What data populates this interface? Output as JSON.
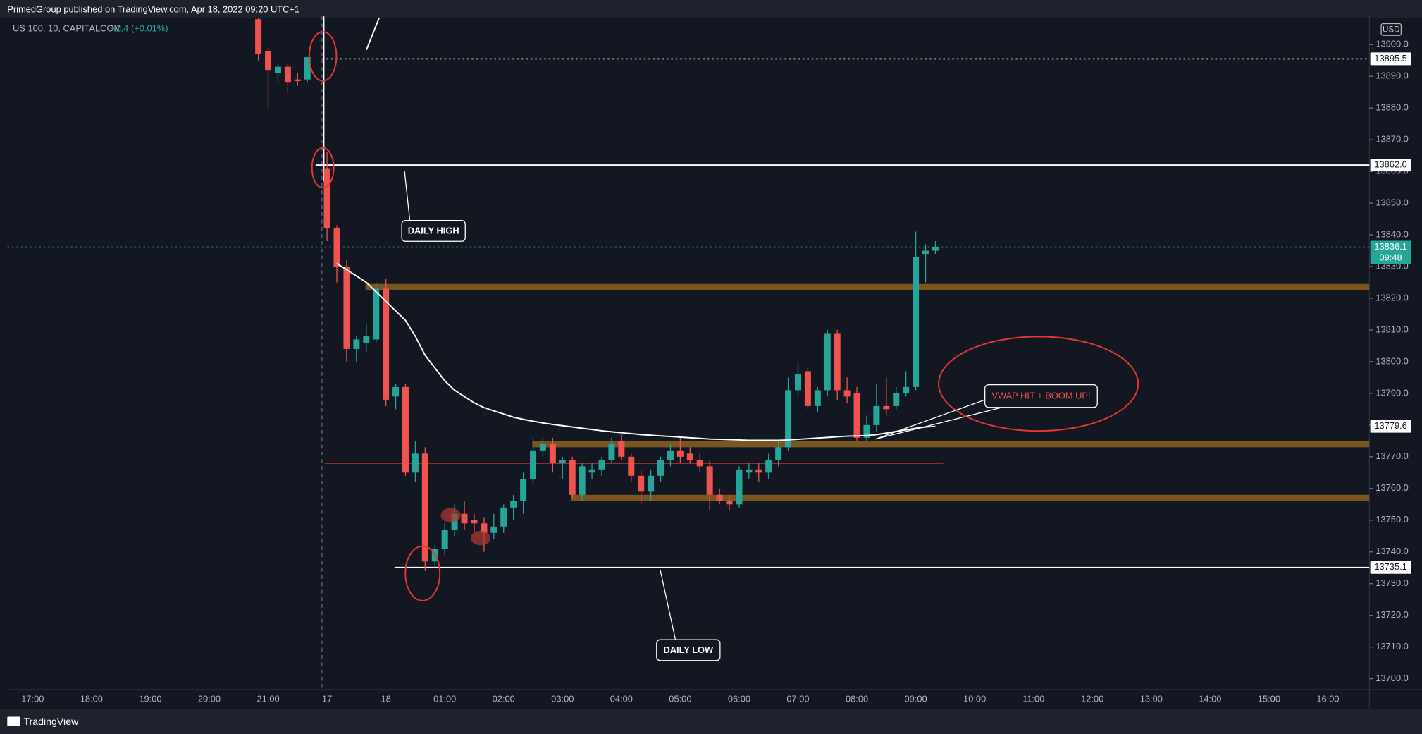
{
  "page": {
    "header": "PrimedGroup published on TradingView.com, Apr 18, 2022 09:20 UTC+1",
    "footer": "TradingView"
  },
  "chart_data": {
    "type": "candlestick",
    "change": "+1.4 (+0.01%)",
    "currency": "USD",
    "countdown": "09:48",
    "up_color": "#26a69a",
    "down_color": "#ef5350",
    "categories": [
      "17:00",
      null,
      null,
      null,
      null,
      null,
      "18:00",
      null,
      null,
      null,
      null,
      null,
      "19:00",
      null,
      null,
      null,
      null,
      null,
      "20:00",
      null,
      null,
      null,
      null,
      null,
      "21:00",
      null,
      null,
      null,
      null,
      null,
      "17",
      null,
      null,
      null,
      null,
      null,
      "18",
      null,
      null,
      null,
      null,
      null,
      "01:00",
      null,
      null,
      null,
      null,
      null,
      "02:00",
      null,
      null,
      null,
      null,
      null,
      "03:00",
      null,
      null,
      null,
      null,
      null,
      "04:00",
      null,
      null,
      null,
      null,
      null,
      "05:00",
      null,
      null,
      null,
      null,
      null,
      "06:00",
      null,
      null,
      null,
      null,
      null,
      "07:00",
      null,
      null,
      null,
      null,
      null,
      "08:00",
      null,
      null,
      null,
      null,
      null,
      "09:00",
      null,
      null,
      null,
      null,
      null,
      "10:00",
      null,
      null,
      null,
      null,
      null,
      "11:00",
      null,
      null,
      null,
      null,
      null,
      "12:00",
      null,
      null,
      null,
      null,
      null,
      "13:00",
      null,
      null,
      null,
      null,
      null,
      "14:00",
      null,
      null,
      null,
      null,
      null,
      "15:00",
      null,
      null,
      null,
      null,
      null,
      "16:00",
      null,
      null,
      null,
      null
    ],
    "series": [
      {
        "name": "US 100, 10, CAPITALCOM",
        "open": [
          null,
          null,
          null,
          null,
          null,
          null,
          null,
          null,
          null,
          null,
          null,
          null,
          null,
          null,
          null,
          null,
          null,
          null,
          null,
          null,
          null,
          null,
          null,
          13908,
          13898,
          13891,
          13893,
          13889,
          13889,
          null,
          13861,
          13842,
          13830,
          13804,
          13806,
          13807,
          13823,
          13789,
          13792,
          13765,
          13771,
          13737,
          13741,
          13747,
          13752,
          13750,
          13749,
          13746,
          13748,
          13754,
          13756,
          13763,
          13772,
          13774,
          13768,
          13769,
          13758,
          13765,
          13766,
          13769,
          13775,
          13770,
          13764,
          13759,
          13764,
          13769,
          13772,
          13771,
          13769,
          13767,
          13758,
          13756,
          13755,
          13765,
          13766,
          13765,
          13769,
          13773,
          13791,
          13797,
          13786,
          13791,
          13809,
          13791,
          13790,
          13776,
          13780,
          13786,
          13786,
          13790,
          13792,
          13834,
          13835,
          null,
          null,
          null,
          null,
          null,
          null,
          null,
          null,
          null,
          null,
          null,
          null,
          null,
          null,
          null,
          null,
          null,
          null,
          null,
          null,
          null,
          null,
          null,
          null,
          null,
          null,
          null,
          null,
          null,
          null,
          null,
          null,
          null,
          null,
          null,
          null,
          null,
          null,
          null,
          null,
          null,
          null,
          null,
          null
        ],
        "high": [
          null,
          null,
          null,
          null,
          null,
          null,
          null,
          null,
          null,
          null,
          null,
          null,
          null,
          null,
          null,
          null,
          null,
          null,
          null,
          null,
          null,
          null,
          null,
          13908.5,
          13899,
          13894,
          13894,
          13891,
          13896,
          null,
          13866,
          13843,
          13832,
          13808,
          13812,
          13825,
          13826,
          13793,
          13793,
          13775,
          13773,
          13742,
          13749,
          13755,
          13756,
          13752,
          13751,
          13752,
          13755,
          13758,
          13765,
          13776,
          13776,
          13776,
          13770,
          13770,
          13768,
          13768,
          13770,
          13776,
          13777,
          13771,
          13766,
          13766,
          13770,
          13774,
          13776,
          13773,
          13771,
          13769,
          13760,
          13758,
          13767,
          13768,
          13768,
          13771,
          13775,
          13795,
          13800,
          13798,
          13792,
          13810,
          13810,
          13795,
          13792,
          13783,
          13793,
          13795,
          13792,
          13797,
          13841,
          13837,
          13838,
          null,
          null,
          null,
          null,
          null,
          null,
          null,
          null,
          null,
          null,
          null,
          null,
          null,
          null,
          null,
          null,
          null,
          null,
          null,
          null,
          null,
          null,
          null,
          null,
          null,
          null,
          null,
          null,
          null,
          null,
          null,
          null,
          null,
          null,
          null,
          null,
          null,
          null,
          null,
          null,
          null,
          null,
          null,
          null
        ],
        "low": [
          null,
          null,
          null,
          null,
          null,
          null,
          null,
          null,
          null,
          null,
          null,
          null,
          null,
          null,
          null,
          null,
          null,
          null,
          null,
          null,
          null,
          null,
          null,
          13895,
          13880,
          13888,
          13885,
          13887,
          13888,
          null,
          13838,
          13825,
          13800,
          13800,
          13803,
          13806,
          13786,
          13785,
          13764,
          13762,
          13734,
          13735,
          13739,
          13745,
          13747,
          13746,
          13740,
          13744,
          13746,
          13750,
          13752,
          13761,
          13770,
          13765,
          13763,
          13757,
          13756,
          13763,
          13764,
          13768,
          13769,
          13762,
          13755,
          13756,
          13762,
          13767,
          13768,
          13768,
          13765,
          13753,
          13755,
          13753,
          13754,
          13763,
          13762,
          13763,
          13767,
          13772,
          13789,
          13785,
          13784,
          13789,
          13788,
          13787,
          13775,
          13775,
          13778,
          13783,
          13785,
          13789,
          13791,
          13825,
          13834,
          null,
          null,
          null,
          null,
          null,
          null,
          null,
          null,
          null,
          null,
          null,
          null,
          null,
          null,
          null,
          null,
          null,
          null,
          null,
          null,
          null,
          null,
          null,
          null,
          null,
          null,
          null,
          null,
          null,
          null,
          null,
          null,
          null,
          null,
          null,
          null,
          null,
          null,
          null,
          null,
          null,
          null,
          null,
          null
        ],
        "close": [
          null,
          null,
          null,
          null,
          null,
          null,
          null,
          null,
          null,
          null,
          null,
          null,
          null,
          null,
          null,
          null,
          null,
          null,
          null,
          null,
          null,
          null,
          null,
          13897,
          13892,
          13893,
          13888,
          13888.5,
          13896,
          null,
          13842,
          13830,
          13804,
          13807,
          13808,
          13823,
          13788,
          13792,
          13765,
          13771,
          13737,
          13741,
          13747,
          13752,
          13749,
          13749,
          13746,
          13748,
          13754,
          13756,
          13763,
          13772,
          13774,
          13768,
          13769,
          13758,
          13767,
          13766,
          13769,
          13774,
          13770,
          13764,
          13759,
          13764,
          13769,
          13772,
          13770,
          13769,
          13767,
          13758,
          13756,
          13755,
          13766,
          13766,
          13765,
          13769,
          13773,
          13791,
          13796,
          13786,
          13791,
          13809,
          13791,
          13789,
          13776,
          13780,
          13786,
          13785,
          13790,
          13792,
          13833,
          13835,
          13836.1,
          null,
          null,
          null,
          null,
          null,
          null,
          null,
          null,
          null,
          null,
          null,
          null,
          null,
          null,
          null,
          null,
          null,
          null,
          null,
          null,
          null,
          null,
          null,
          null,
          null,
          null,
          null,
          null,
          null,
          null,
          null,
          null,
          null,
          null,
          null,
          null,
          null,
          null,
          null,
          null,
          null,
          null,
          null,
          null
        ]
      }
    ],
    "vwap": {
      "color": "#ffffff",
      "values": [
        null,
        null,
        null,
        null,
        null,
        null,
        null,
        null,
        null,
        null,
        null,
        null,
        null,
        null,
        null,
        null,
        null,
        null,
        null,
        null,
        null,
        null,
        null,
        null,
        null,
        null,
        null,
        null,
        null,
        null,
        null,
        13831,
        13829,
        13827,
        13825,
        13822,
        13819,
        13816,
        13813,
        13808,
        13802,
        13798,
        13794,
        13791,
        13789,
        13787,
        13785.5,
        13784.5,
        13783.5,
        13782.5,
        13781.8,
        13781.2,
        13780.7,
        13780.2,
        13779.8,
        13779.4,
        13779,
        13778.6,
        13778.2,
        13777.9,
        13777.6,
        13777.3,
        13777,
        13776.8,
        13776.6,
        13776.4,
        13776.2,
        13776,
        13775.8,
        13775.6,
        13775.5,
        13775.4,
        13775.3,
        13775.2,
        13775.2,
        13775.2,
        13775.2,
        13775.3,
        13775.5,
        13775.7,
        13775.9,
        13776.1,
        13776.3,
        13776.5,
        13776.6,
        13776.7,
        13777,
        13777.5,
        13778,
        13778.5,
        13779,
        13779.4,
        13779.6,
        null,
        null,
        null,
        null,
        null,
        null,
        null,
        null,
        null,
        null,
        null,
        null,
        null,
        null,
        null,
        null,
        null,
        null,
        null,
        null,
        null,
        null,
        null,
        null,
        null,
        null,
        null,
        null,
        null,
        null,
        null,
        null,
        null,
        null,
        null,
        null,
        null,
        null,
        null,
        null,
        null,
        null,
        null,
        null
      ]
    },
    "levels": [
      {
        "value": 13895.5,
        "label": "13895.5",
        "style": "dotted",
        "color": "#ffffff"
      },
      {
        "value": 13862,
        "label": "13862.0",
        "style": "solid",
        "color": "#ffffff"
      },
      {
        "value": 13836.1,
        "label": "13836.1",
        "style": "dotted",
        "color": "#26a69a"
      },
      {
        "value": 13779.6,
        "label": "13779.6",
        "style": "none",
        "color": "#ffffff"
      },
      {
        "value": 13735.1,
        "label": "13735.1",
        "style": "solid",
        "color": "#ffffff"
      }
    ],
    "zones": [
      {
        "value": 13823.5
      },
      {
        "value": 13774
      },
      {
        "value": 13757
      }
    ],
    "zone_color": "#7a5520",
    "poc": {
      "value": 13768,
      "color": "#e53935"
    },
    "annotations": [
      "DAILY HIGH",
      "DAILY LOW",
      "VWAP HIT + BOOM UP!"
    ],
    "ylim": [
      13696.6,
      13908.9
    ],
    "yticks": [
      {
        "value": 13700,
        "label": "13700.0"
      },
      {
        "value": 13710,
        "label": "13710.0"
      },
      {
        "value": 13720,
        "label": "13720.0"
      },
      {
        "value": 13730,
        "label": "13730.0"
      },
      {
        "value": 13740,
        "label": "13740.0"
      },
      {
        "value": 13750,
        "label": "13750.0"
      },
      {
        "value": 13760,
        "label": "13760.0"
      },
      {
        "value": 13770,
        "label": "13770.0"
      },
      {
        "value": 13780,
        "label": "13780.0"
      },
      {
        "value": 13790,
        "label": "13790.0"
      },
      {
        "value": 13800,
        "label": "13800.0"
      },
      {
        "value": 13810,
        "label": "13810.0"
      },
      {
        "value": 13820,
        "label": "13820.0"
      },
      {
        "value": 13830,
        "label": "13830.0"
      },
      {
        "value": 13840,
        "label": "13840.0"
      },
      {
        "value": 13850,
        "label": "13850.0"
      },
      {
        "value": 13860,
        "label": "13860.0"
      },
      {
        "value": 13870,
        "label": "13870.0"
      },
      {
        "value": 13880,
        "label": "13880.0"
      },
      {
        "value": 13890,
        "label": "13890.0"
      },
      {
        "value": 13900,
        "label": "13900.0"
      }
    ]
  }
}
